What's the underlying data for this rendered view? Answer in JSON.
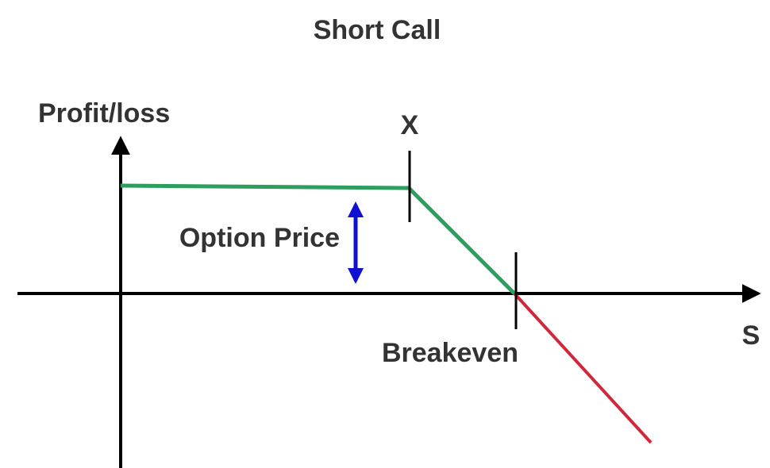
{
  "title": "Short Call",
  "y_axis_label": "Profit/loss",
  "x_axis_label": "S",
  "strike_label": "X",
  "premium_label": "Option Price",
  "breakeven_label": "Breakeven"
}
